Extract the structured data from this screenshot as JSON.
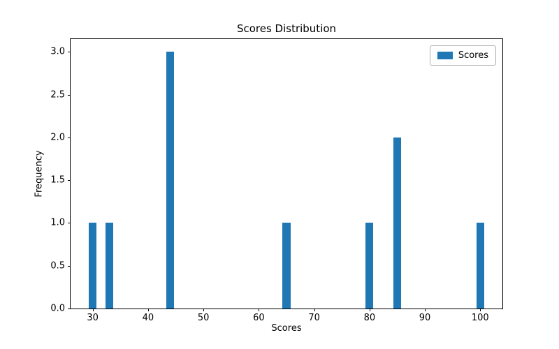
{
  "figure": {
    "background": "#ffffff"
  },
  "chart_data": {
    "type": "bar",
    "title": "Scores Distribution",
    "xlabel": "Scores",
    "ylabel": "Frequency",
    "x": [
      30,
      33,
      44,
      65,
      80,
      85,
      100
    ],
    "values": [
      1,
      1,
      3,
      1,
      1,
      2,
      1
    ],
    "bar_width": 1.4,
    "bar_color": "#1f77b4",
    "xlim": [
      26,
      104
    ],
    "ylim": [
      0,
      3.15
    ],
    "x_ticks": [
      30,
      40,
      50,
      60,
      70,
      80,
      90,
      100
    ],
    "y_ticks": [
      0.0,
      0.5,
      1.0,
      1.5,
      2.0,
      2.5,
      3.0
    ],
    "y_tick_decimals": 1,
    "grid": false,
    "legend": {
      "position": "upper right",
      "entries": [
        {
          "label": "Scores",
          "color": "#1f77b4"
        }
      ]
    }
  }
}
